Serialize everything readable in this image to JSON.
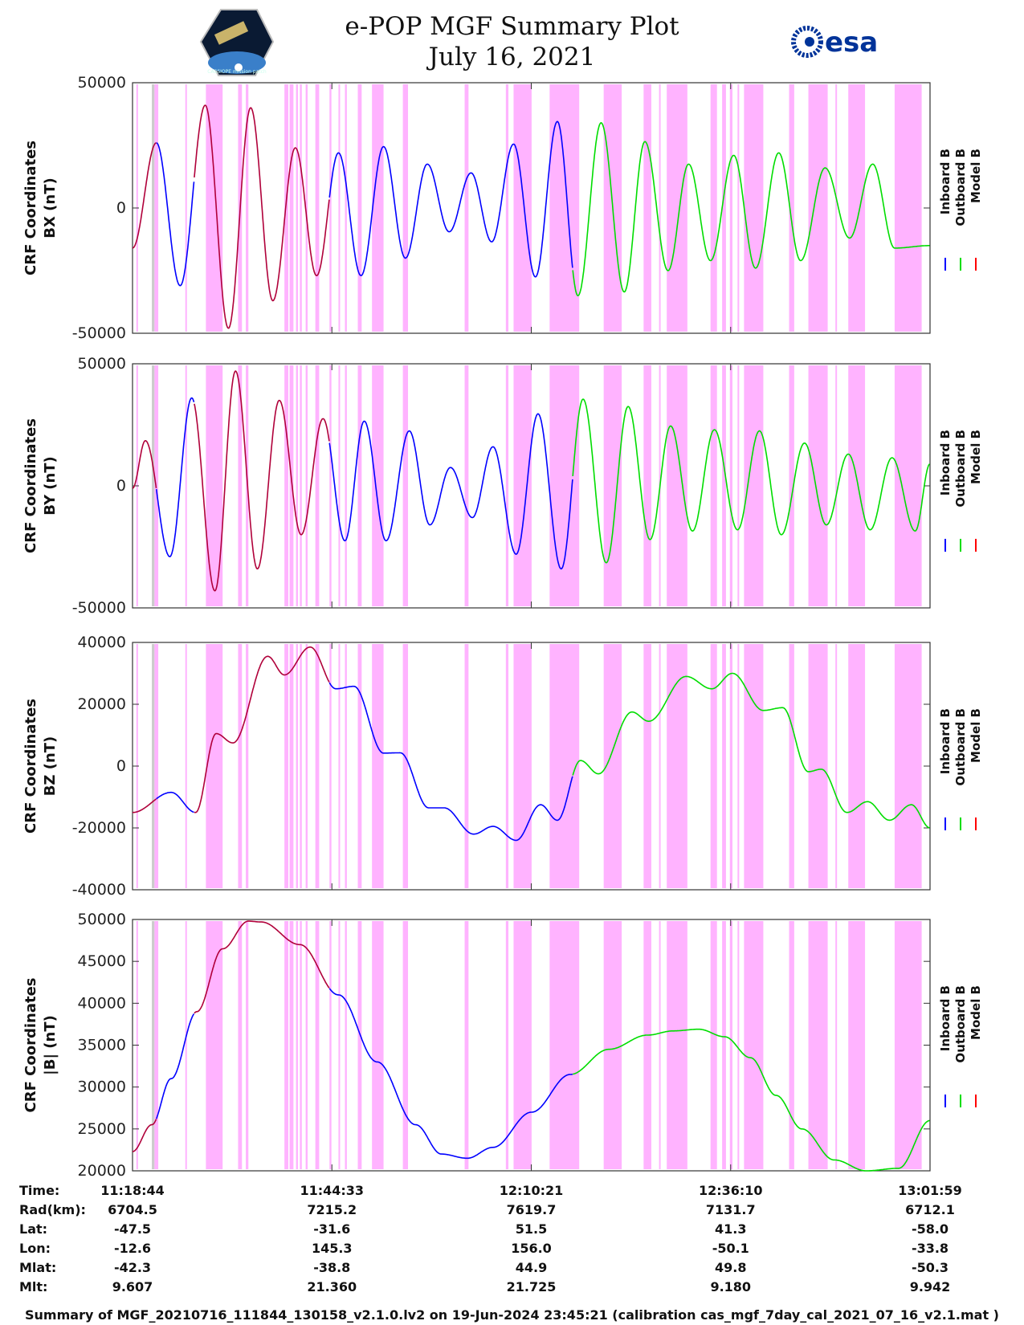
{
  "header": {
    "title": "e-POP MGF Summary Plot",
    "date": "July 16, 2021",
    "left_logo": "CASSIOPE mission patch",
    "right_logo": "esa",
    "right_logo_color": "#003399"
  },
  "colors": {
    "inboard": "#0000ff",
    "outboard": "#00dd00",
    "model": "#ff0000",
    "shade": "#ffb3ff",
    "gap": "#cccccc"
  },
  "chart_data": {
    "type": "line",
    "x_start_time": "11:18:44",
    "x_end_time": "13:01:59",
    "xlim_seconds": [
      0,
      6195
    ],
    "legend": {
      "placement": "right",
      "entries": [
        {
          "name": "Inboard B",
          "color": "#0000ff"
        },
        {
          "name": "Outboard B",
          "color": "#00dd00"
        },
        {
          "name": "Model B",
          "color": "#ff0000"
        }
      ]
    },
    "shaded_intervals_seconds": [
      [
        30,
        35
      ],
      [
        170,
        200
      ],
      [
        410,
        415
      ],
      [
        570,
        700
      ],
      [
        820,
        850
      ],
      [
        880,
        900
      ],
      [
        1180,
        1210
      ],
      [
        1220,
        1250
      ],
      [
        1270,
        1285
      ],
      [
        1300,
        1315
      ],
      [
        1345,
        1360
      ],
      [
        1420,
        1450
      ],
      [
        1530,
        1545
      ],
      [
        1600,
        1610
      ],
      [
        1650,
        1665
      ],
      [
        1750,
        1780
      ],
      [
        1860,
        1950
      ],
      [
        2100,
        2140
      ],
      [
        2580,
        2610
      ],
      [
        2900,
        2920
      ],
      [
        2960,
        3100
      ],
      [
        3240,
        3470
      ],
      [
        3660,
        3800
      ],
      [
        3970,
        4030
      ],
      [
        4090,
        4100
      ],
      [
        4150,
        4310
      ],
      [
        4490,
        4540
      ],
      [
        4580,
        4610
      ],
      [
        4640,
        4660
      ],
      [
        4700,
        4700
      ],
      [
        4750,
        4900
      ],
      [
        5100,
        5140
      ],
      [
        5250,
        5400
      ],
      [
        5460,
        5470
      ],
      [
        5560,
        5690
      ],
      [
        5920,
        6130
      ]
    ],
    "gap_intervals_seconds": [
      [
        150,
        170
      ]
    ],
    "panels": [
      {
        "ylabel": [
          "CRF Coordinates",
          "BX (nT)"
        ],
        "ylim": [
          -50000,
          50000
        ],
        "yticks": [
          -50000,
          0,
          50000
        ],
        "yticklabels": [
          "-50000",
          "0",
          "50000"
        ],
        "curve": "bx"
      },
      {
        "ylabel": [
          "CRF Coordinates",
          "BY (nT)"
        ],
        "ylim": [
          -50000,
          50000
        ],
        "yticks": [
          -50000,
          0,
          50000
        ],
        "yticklabels": [
          "-50000",
          "0",
          "50000"
        ],
        "curve": "by"
      },
      {
        "ylabel": [
          "CRF Coordinates",
          "BZ (nT)"
        ],
        "ylim": [
          -40000,
          40000
        ],
        "yticks": [
          -40000,
          -20000,
          0,
          20000,
          40000
        ],
        "yticklabels": [
          "-40000",
          "-20000",
          "0",
          "20000",
          "40000"
        ],
        "curve": "bz",
        "points": [
          [
            0,
            -15000
          ],
          [
            300,
            -8500
          ],
          [
            490,
            -15000
          ],
          [
            650,
            10500
          ],
          [
            780,
            7500
          ],
          [
            1050,
            35500
          ],
          [
            1180,
            29500
          ],
          [
            1380,
            38500
          ],
          [
            1580,
            25000
          ],
          [
            1720,
            25800
          ],
          [
            1950,
            4200
          ],
          [
            2080,
            4300
          ],
          [
            2300,
            -13500
          ],
          [
            2420,
            -13500
          ],
          [
            2650,
            -22000
          ],
          [
            2800,
            -19500
          ],
          [
            2980,
            -24000
          ],
          [
            3170,
            -12500
          ],
          [
            3300,
            -17500
          ],
          [
            3480,
            1800
          ],
          [
            3620,
            -2500
          ],
          [
            3880,
            17500
          ],
          [
            4010,
            14500
          ],
          [
            4300,
            29000
          ],
          [
            4500,
            25000
          ],
          [
            4660,
            30000
          ],
          [
            4900,
            18000
          ],
          [
            5050,
            18900
          ],
          [
            5250,
            -1800
          ],
          [
            5350,
            -1000
          ],
          [
            5550,
            -15000
          ],
          [
            5710,
            -11500
          ],
          [
            5880,
            -17500
          ],
          [
            6050,
            -12500
          ],
          [
            6195,
            -20000
          ]
        ]
      },
      {
        "ylabel": [
          "CRF Coordinates",
          "|B| (nT)"
        ],
        "ylim": [
          20000,
          50000
        ],
        "yticks": [
          20000,
          25000,
          30000,
          35000,
          40000,
          45000,
          50000
        ],
        "yticklabels": [
          "20000",
          "25000",
          "30000",
          "35000",
          "40000",
          "45000",
          "50000"
        ],
        "curve": "bmag",
        "points": [
          [
            0,
            22300
          ],
          [
            150,
            25500
          ],
          [
            300,
            31000
          ],
          [
            500,
            39000
          ],
          [
            700,
            46500
          ],
          [
            900,
            49800
          ],
          [
            1000,
            49700
          ],
          [
            1300,
            47000
          ],
          [
            1600,
            41000
          ],
          [
            1900,
            33000
          ],
          [
            2200,
            25500
          ],
          [
            2400,
            22000
          ],
          [
            2600,
            21500
          ],
          [
            2800,
            22800
          ],
          [
            3100,
            27000
          ],
          [
            3400,
            31500
          ],
          [
            3700,
            34500
          ],
          [
            4000,
            36200
          ],
          [
            4200,
            36700
          ],
          [
            4400,
            36900
          ],
          [
            4600,
            36000
          ],
          [
            4800,
            33500
          ],
          [
            5000,
            29000
          ],
          [
            5200,
            25000
          ],
          [
            5450,
            21300
          ],
          [
            5700,
            20000
          ],
          [
            5950,
            20300
          ],
          [
            6195,
            26000
          ]
        ]
      }
    ],
    "series_segments_seconds": [
      {
        "name": "Model B",
        "from": 0,
        "to": 185
      },
      {
        "name": "Inboard B",
        "from": 185,
        "to": 480
      },
      {
        "name": "Model B",
        "from": 480,
        "to": 1530
      },
      {
        "name": "Inboard B",
        "from": 1530,
        "to": 3420
      },
      {
        "name": "Outboard B",
        "from": 3420,
        "to": 6195
      }
    ]
  },
  "ephemeris": {
    "labels": [
      "Time:",
      "Rad(km):",
      "Lat:",
      "Lon:",
      "Mlat:",
      "Mlt:"
    ],
    "columns": [
      [
        "11:18:44",
        "6704.5",
        "-47.5",
        "-12.6",
        "-42.3",
        "9.607"
      ],
      [
        "11:44:33",
        "7215.2",
        "-31.6",
        "145.3",
        "-38.8",
        "21.360"
      ],
      [
        "12:10:21",
        "7619.7",
        "51.5",
        "156.0",
        "44.9",
        "21.725"
      ],
      [
        "12:36:10",
        "7131.7",
        "41.3",
        "-50.1",
        "49.8",
        "9.180"
      ],
      [
        "13:01:59",
        "6712.1",
        "-58.0",
        "-33.8",
        "-50.3",
        "9.942"
      ]
    ]
  },
  "footer": "Summary of MGF_20210716_111844_130158_v2.1.0.lv2 on 19-Jun-2024 23:45:21 (calibration cas_mgf_7day_cal_2021_07_16_v2.1.mat )"
}
